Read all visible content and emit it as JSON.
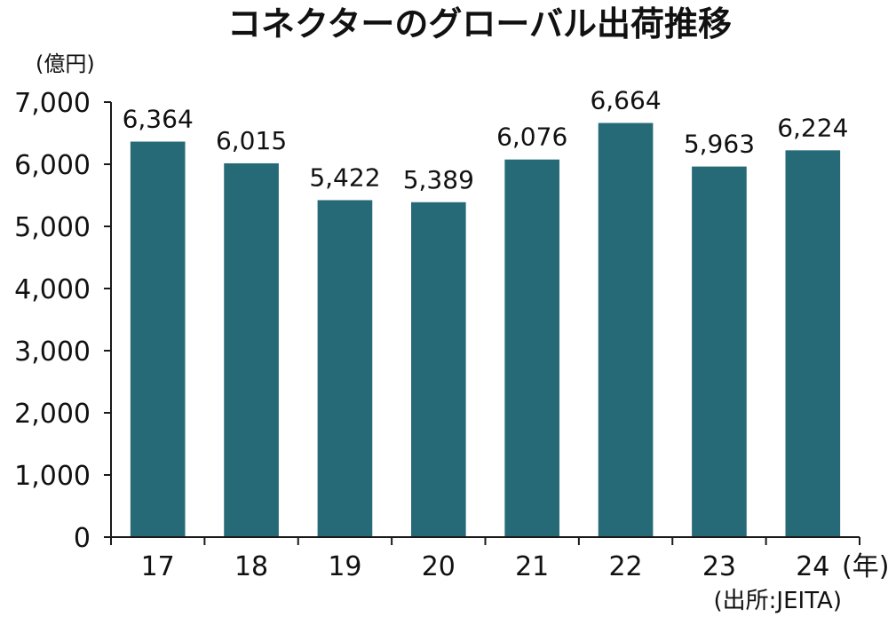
{
  "chart_data": {
    "type": "bar",
    "title": "コネクターのグローバル出荷推移",
    "ylabel": "(億円)",
    "xunit": "(年)",
    "source": "(出所:JEITA)",
    "categories": [
      "17",
      "18",
      "19",
      "20",
      "21",
      "22",
      "23",
      "24"
    ],
    "values": [
      6364,
      6015,
      5422,
      5389,
      6076,
      6664,
      5963,
      6224
    ],
    "value_labels": [
      "6,364",
      "6,015",
      "5,422",
      "5,389",
      "6,076",
      "6,664",
      "5,963",
      "6,224"
    ],
    "ylim": [
      0,
      7000
    ],
    "yticks": [
      "0",
      "1,000",
      "2,000",
      "3,000",
      "4,000",
      "5,000",
      "6,000",
      "7,000"
    ],
    "bar_color": "#266a78",
    "grid": false,
    "legend": "none"
  }
}
